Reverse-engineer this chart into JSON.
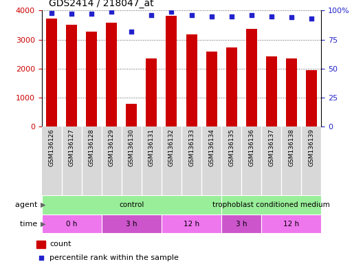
{
  "title": "GDS2414 / 218047_at",
  "samples": [
    "GSM136126",
    "GSM136127",
    "GSM136128",
    "GSM136129",
    "GSM136130",
    "GSM136131",
    "GSM136132",
    "GSM136133",
    "GSM136134",
    "GSM136135",
    "GSM136136",
    "GSM136137",
    "GSM136138",
    "GSM136139"
  ],
  "counts": [
    3720,
    3520,
    3270,
    3590,
    790,
    2360,
    3820,
    3170,
    2590,
    2720,
    3360,
    2430,
    2360,
    1960
  ],
  "percentile_ranks": [
    98,
    97,
    97,
    99,
    82,
    96,
    99,
    96,
    95,
    95,
    96,
    95,
    94,
    93
  ],
  "bar_color": "#cc0000",
  "dot_color": "#2222cc",
  "ylim_left": [
    0,
    4000
  ],
  "ylim_right": [
    0,
    100
  ],
  "yticks_left": [
    0,
    1000,
    2000,
    3000,
    4000
  ],
  "yticks_right": [
    0,
    25,
    50,
    75,
    100
  ],
  "ytick_labels_right": [
    "0",
    "25",
    "50",
    "75",
    "100%"
  ],
  "bg_color": "#ffffff",
  "plot_bg_color": "#ffffff",
  "grid_color": "#555555",
  "tick_label_color_left": "#cc0000",
  "tick_label_color_right": "#2222cc",
  "xlabel_bg_color": "#d8d8d8",
  "agent_control_color": "#99ee99",
  "agent_troph_color": "#99ee99",
  "time_color_light": "#ee77ee",
  "time_color_dark": "#cc55cc",
  "legend_count_color": "#cc0000",
  "legend_pct_color": "#2222cc",
  "agent_spans": [
    {
      "label": "control",
      "start": 0,
      "end": 9
    },
    {
      "label": "trophoblast conditioned medium",
      "start": 9,
      "end": 14
    }
  ],
  "time_spans": [
    {
      "label": "0 h",
      "start": 0,
      "end": 3,
      "dark": false
    },
    {
      "label": "3 h",
      "start": 3,
      "end": 6,
      "dark": true
    },
    {
      "label": "12 h",
      "start": 6,
      "end": 9,
      "dark": false
    },
    {
      "label": "3 h",
      "start": 9,
      "end": 11,
      "dark": true
    },
    {
      "label": "12 h",
      "start": 11,
      "end": 14,
      "dark": false
    }
  ]
}
